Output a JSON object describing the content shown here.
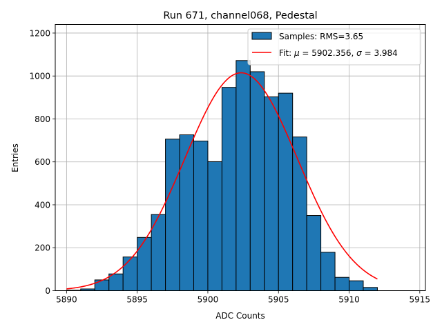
{
  "chart_data": {
    "type": "bar",
    "title": "Run 671, channel068, Pedestal",
    "xlabel": "ADC Counts",
    "ylabel": "Entries",
    "xlim": [
      5889.2,
      5915.4
    ],
    "ylim": [
      0,
      1240
    ],
    "xticks": [
      5890,
      5895,
      5900,
      5905,
      5910,
      5915
    ],
    "yticks": [
      0,
      200,
      400,
      600,
      800,
      1000,
      1200
    ],
    "grid": true,
    "legend_position": "top-right",
    "bins": [
      {
        "left": 5890,
        "value": 2
      },
      {
        "left": 5891,
        "value": 8
      },
      {
        "left": 5892,
        "value": 50
      },
      {
        "left": 5893,
        "value": 78
      },
      {
        "left": 5894,
        "value": 157
      },
      {
        "left": 5895,
        "value": 248
      },
      {
        "left": 5896,
        "value": 355
      },
      {
        "left": 5897,
        "value": 706
      },
      {
        "left": 5898,
        "value": 726
      },
      {
        "left": 5899,
        "value": 697
      },
      {
        "left": 5900,
        "value": 601
      },
      {
        "left": 5901,
        "value": 947
      },
      {
        "left": 5902,
        "value": 1072
      },
      {
        "left": 5903,
        "value": 1020
      },
      {
        "left": 5904,
        "value": 903
      },
      {
        "left": 5905,
        "value": 920
      },
      {
        "left": 5906,
        "value": 716
      },
      {
        "left": 5907,
        "value": 350
      },
      {
        "left": 5908,
        "value": 179
      },
      {
        "left": 5909,
        "value": 62
      },
      {
        "left": 5910,
        "value": 46
      },
      {
        "left": 5911,
        "value": 15
      }
    ],
    "bin_width": 1,
    "fit": {
      "mu": 5902.356,
      "sigma": 3.984,
      "amplitude": 1015,
      "x_range": [
        5890,
        5912
      ]
    },
    "legend": {
      "samples_label": "Samples: RMS=3.65",
      "fit_prefix": "Fit: ",
      "mu_symbol": "μ",
      "mu_text": " = 5902.356, ",
      "sigma_symbol": "σ",
      "sigma_text": " = 3.984"
    },
    "colors": {
      "bar_fill": "#1f77b4",
      "bar_edge": "#000000",
      "fit_line": "#ff0000",
      "grid": "#b0b0b0"
    }
  }
}
